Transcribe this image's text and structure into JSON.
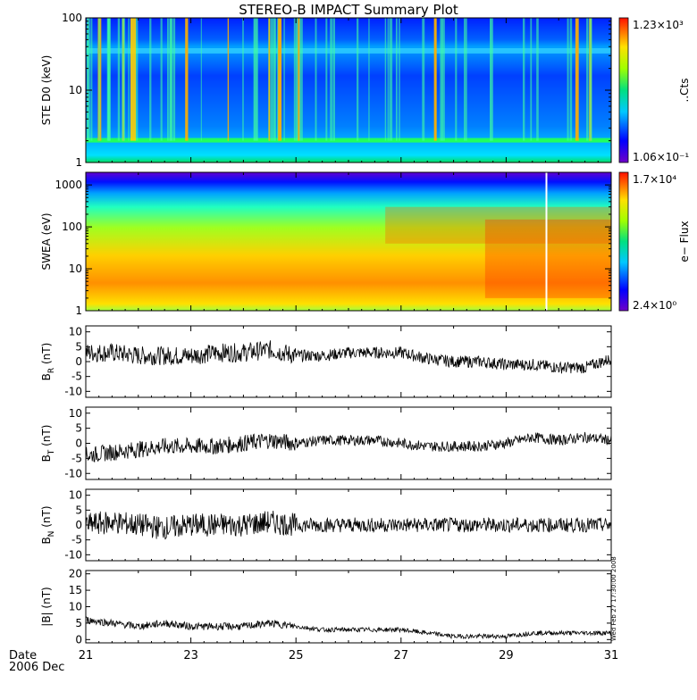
{
  "title": "STEREO-B IMPACT Summary Plot",
  "date_label_line1": "Date",
  "date_label_line2": "2006 Dec",
  "x_ticks": [
    "21",
    "23",
    "25",
    "27",
    "29",
    "31"
  ],
  "x_range": [
    21,
    31
  ],
  "stamp": "Wed Feb 27 17:30:00 2008",
  "chart_data": [
    {
      "type": "heatmap",
      "ylabel": "STE D0 (keV)",
      "y_scale": "log",
      "ylim": [
        1,
        100
      ],
      "y_ticks": [
        "100",
        "10",
        "1"
      ],
      "colorbar": {
        "max": "1.23×10³",
        "min": "1.06×10⁻¹",
        "label": "..Cts"
      }
    },
    {
      "type": "heatmap",
      "ylabel": "SWEA (eV)",
      "y_scale": "log",
      "ylim": [
        1,
        2000
      ],
      "y_ticks": [
        "1000",
        "100",
        "10",
        "1"
      ],
      "colorbar": {
        "max": "1.7×10⁴",
        "min": "2.4×10⁰",
        "label": "e− Flux"
      }
    },
    {
      "type": "line",
      "ylabel": "B",
      "ylabel_sub": "R",
      "ylabel_unit": " (nT)",
      "ylim": [
        -12,
        12
      ],
      "y_ticks": [
        "10",
        "5",
        "0",
        "-5",
        "-10"
      ],
      "x": [
        21.0,
        21.5,
        22.0,
        22.5,
        23.0,
        23.5,
        24.0,
        24.5,
        25.0,
        25.5,
        26.0,
        26.5,
        27.0,
        27.5,
        28.0,
        28.5,
        29.0,
        29.5,
        30.0,
        30.5,
        31.0
      ],
      "values": [
        3,
        3,
        2,
        2,
        2,
        3,
        3,
        4,
        2,
        2,
        3,
        3,
        3,
        1,
        0,
        0,
        -1,
        -1,
        -2,
        -2,
        1
      ]
    },
    {
      "type": "line",
      "ylabel": "B",
      "ylabel_sub": "T",
      "ylabel_unit": " (nT)",
      "ylim": [
        -12,
        12
      ],
      "y_ticks": [
        "10",
        "5",
        "0",
        "-5",
        "-10"
      ],
      "x": [
        21.0,
        21.5,
        22.0,
        22.5,
        23.0,
        23.5,
        24.0,
        24.5,
        25.0,
        25.5,
        26.0,
        26.5,
        27.0,
        27.5,
        28.0,
        28.5,
        29.0,
        29.5,
        30.0,
        30.5,
        31.0
      ],
      "values": [
        -4,
        -3,
        -2,
        -1,
        -1,
        -1,
        0,
        1,
        0,
        1,
        1,
        1,
        0,
        -1,
        -1,
        -1,
        0,
        2,
        1,
        2,
        1
      ]
    },
    {
      "type": "line",
      "ylabel": "B",
      "ylabel_sub": "N",
      "ylabel_unit": " (nT)",
      "ylim": [
        -12,
        12
      ],
      "y_ticks": [
        "10",
        "5",
        "0",
        "-5",
        "-10"
      ],
      "x": [
        21.0,
        21.5,
        22.0,
        22.5,
        23.0,
        23.5,
        24.0,
        24.5,
        25.0,
        25.5,
        26.0,
        26.5,
        27.0,
        27.5,
        28.0,
        28.5,
        29.0,
        29.5,
        30.0,
        30.5,
        31.0
      ],
      "values": [
        0,
        1,
        0,
        -1,
        0,
        0,
        0,
        1,
        0,
        0,
        0,
        0,
        0,
        0,
        0,
        0,
        0,
        0,
        0,
        0,
        0
      ]
    },
    {
      "type": "line",
      "ylabel": "|B| (nT)",
      "ylim": [
        -1,
        21
      ],
      "y_ticks": [
        "20",
        "15",
        "10",
        "5",
        "0"
      ],
      "x": [
        21.0,
        21.5,
        22.0,
        22.5,
        23.0,
        23.5,
        24.0,
        24.5,
        25.0,
        25.5,
        26.0,
        26.5,
        27.0,
        27.5,
        28.0,
        28.5,
        29.0,
        29.5,
        30.0,
        30.5,
        31.0
      ],
      "values": [
        6,
        5,
        4,
        5,
        4,
        4,
        4,
        5,
        4,
        3,
        3,
        3,
        3,
        2,
        1,
        1,
        1,
        2,
        2,
        2,
        2
      ]
    }
  ]
}
